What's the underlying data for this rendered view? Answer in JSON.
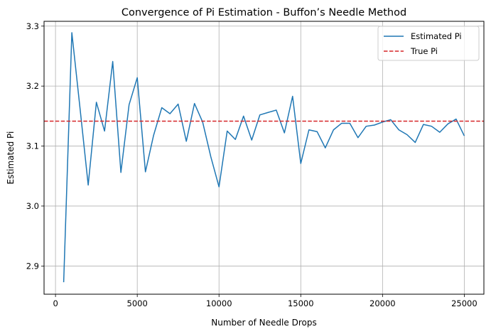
{
  "chart_data": {
    "type": "line",
    "title": "Convergence of Pi Estimation - Buffon’s Needle Method",
    "xlabel": "Number of Needle Drops",
    "ylabel": "Estimated Pi",
    "xlim": [
      -700,
      26200
    ],
    "ylim": [
      2.853,
      3.308
    ],
    "xticks": [
      0,
      5000,
      10000,
      15000,
      20000,
      25000
    ],
    "xtick_labels": [
      "0",
      "5000",
      "10000",
      "15000",
      "20000",
      "25000"
    ],
    "yticks": [
      2.9,
      3.0,
      3.1,
      3.2,
      3.3
    ],
    "ytick_labels": [
      "2.9",
      "3.0",
      "3.1",
      "3.2",
      "3.3"
    ],
    "grid": true,
    "legend_position": "top-right",
    "series": [
      {
        "name": "Estimated Pi",
        "color": "#1f77b4",
        "style": "solid",
        "x": [
          500,
          1000,
          1500,
          2000,
          2500,
          3000,
          3500,
          4000,
          4500,
          5000,
          5500,
          6000,
          6500,
          7000,
          7500,
          8000,
          8500,
          9000,
          9500,
          10000,
          10500,
          11000,
          11500,
          12000,
          12500,
          13000,
          13500,
          14000,
          14500,
          15000,
          15500,
          16000,
          16500,
          17000,
          17500,
          18000,
          18500,
          19000,
          19500,
          20000,
          20500,
          21000,
          21500,
          22000,
          22500,
          23000,
          23500,
          24000,
          24500,
          25000
        ],
        "y": [
          2.873,
          3.289,
          3.163,
          3.035,
          3.173,
          3.125,
          3.241,
          3.056,
          3.169,
          3.214,
          3.057,
          3.118,
          3.164,
          3.154,
          3.17,
          3.108,
          3.171,
          3.14,
          3.082,
          3.032,
          3.125,
          3.111,
          3.15,
          3.11,
          3.152,
          3.156,
          3.16,
          3.122,
          3.183,
          3.071,
          3.127,
          3.124,
          3.097,
          3.127,
          3.138,
          3.138,
          3.114,
          3.133,
          3.135,
          3.14,
          3.144,
          3.127,
          3.119,
          3.106,
          3.136,
          3.133,
          3.123,
          3.137,
          3.145,
          3.117
        ]
      },
      {
        "name": "True Pi",
        "color": "#d62728",
        "style": "dashed",
        "hline": 3.14159
      }
    ]
  }
}
